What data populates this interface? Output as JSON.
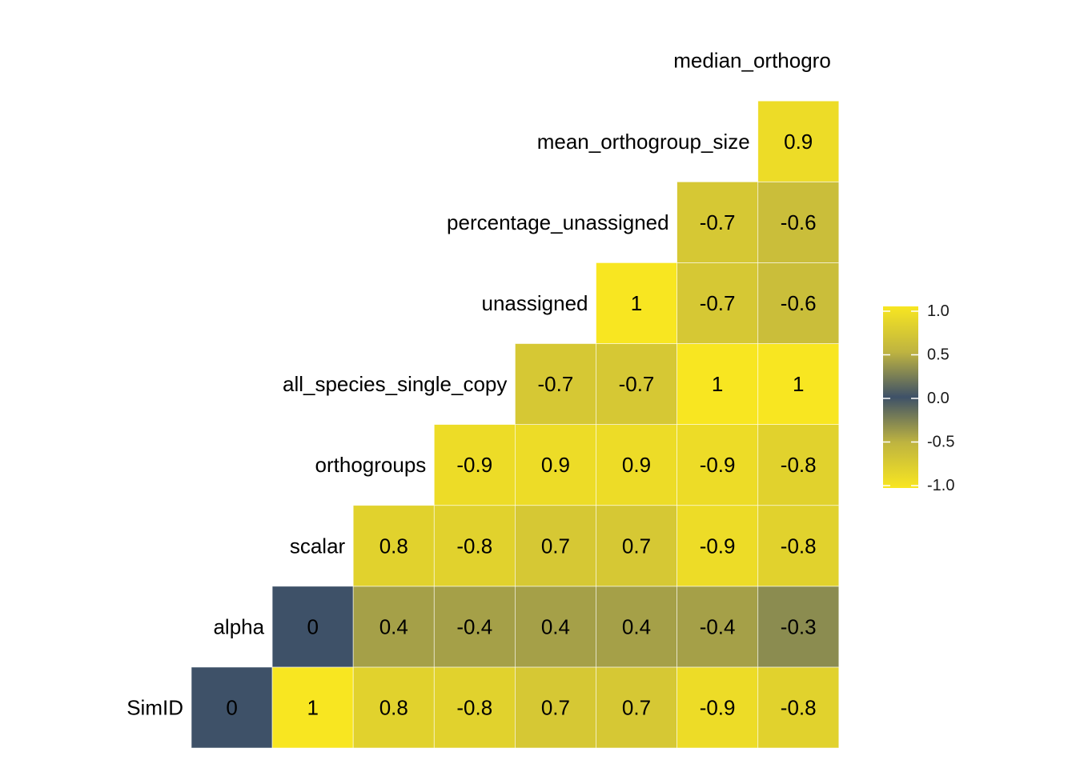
{
  "chart_data": {
    "type": "heatmap",
    "title": "",
    "xlabel": "",
    "ylabel": "",
    "row_labels": [
      "SimID",
      "alpha",
      "scalar",
      "orthogroups",
      "all_species_single_copy",
      "unassigned",
      "percentage_unassigned",
      "mean_orthogroup_size",
      "median_orthogro"
    ],
    "column_count": 8,
    "rows": [
      {
        "label": "SimID",
        "start_col": 0,
        "values": [
          0,
          1,
          0.8,
          -0.8,
          0.7,
          0.7,
          -0.9,
          -0.8
        ]
      },
      {
        "label": "alpha",
        "start_col": 1,
        "values": [
          0,
          0.4,
          -0.4,
          0.4,
          0.4,
          -0.4,
          -0.3
        ]
      },
      {
        "label": "scalar",
        "start_col": 2,
        "values": [
          0.8,
          -0.8,
          0.7,
          0.7,
          -0.9,
          -0.8
        ]
      },
      {
        "label": "orthogroups",
        "start_col": 3,
        "values": [
          -0.9,
          0.9,
          0.9,
          -0.9,
          -0.8
        ]
      },
      {
        "label": "all_species_single_copy",
        "start_col": 4,
        "values": [
          -0.7,
          -0.7,
          1,
          1
        ]
      },
      {
        "label": "unassigned",
        "start_col": 5,
        "values": [
          1,
          -0.7,
          -0.6
        ]
      },
      {
        "label": "percentage_unassigned",
        "start_col": 6,
        "values": [
          -0.7,
          -0.6
        ]
      },
      {
        "label": "mean_orthogroup_size",
        "start_col": 7,
        "values": [
          0.9
        ]
      },
      {
        "label": "median_orthogro",
        "start_col": 8,
        "values": []
      }
    ],
    "color_scale": {
      "min": -1,
      "max": 1,
      "stops": [
        {
          "value": -1.0,
          "color": "#f8e621"
        },
        {
          "value": -0.5,
          "color": "#bfb440"
        },
        {
          "value": 0.0,
          "color": "#3e5168"
        },
        {
          "value": 0.5,
          "color": "#bfb440"
        },
        {
          "value": 1.0,
          "color": "#f8e621"
        }
      ]
    },
    "legend": {
      "position": "right",
      "ticks": [
        "1.0",
        "0.5",
        "0.0",
        "-0.5",
        "-1.0"
      ]
    }
  }
}
